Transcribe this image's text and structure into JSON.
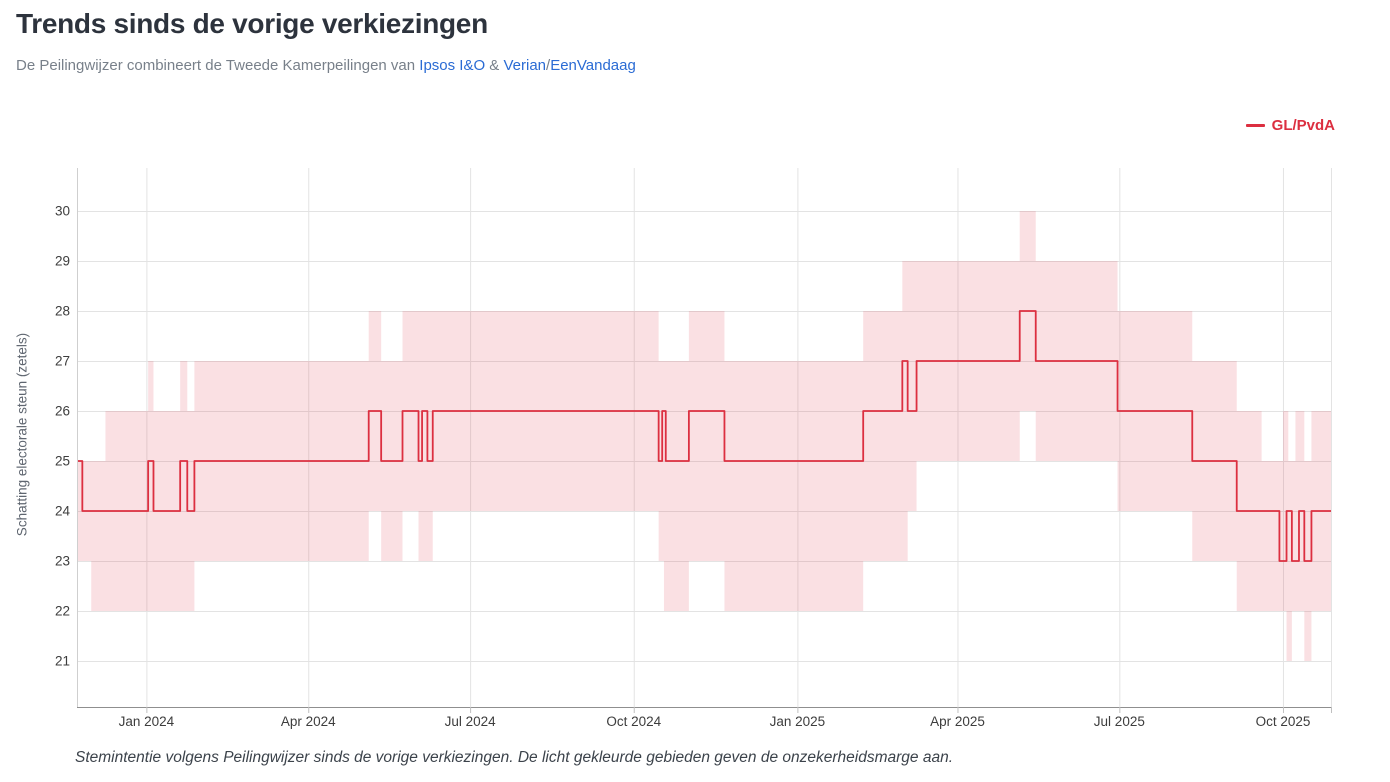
{
  "header": {
    "title": "Trends sinds de vorige verkiezingen",
    "subtitle_prefix": "De Peilingwijzer combineert de Tweede Kamerpeilingen van ",
    "link_ipsos": "Ipsos I&O",
    "sep_amp": " & ",
    "link_verian": "Verian",
    "sep_slash": "/",
    "link_eenvandaag": "EenVandaag"
  },
  "legend": {
    "label": "GL/PvdA"
  },
  "caption": "Stemintentie volgens Peilingwijzer sinds de vorige verkiezingen. De licht gekleurde gebieden geven de onzekerheidsmarge aan.",
  "chart_data": {
    "type": "line",
    "step": true,
    "series_name": "GL/PvdA",
    "ylabel": "Schatting electorale steun (zetels)",
    "x_domain": [
      "2023-11-23",
      "2025-10-28"
    ],
    "ylim": [
      20.1,
      30.9
    ],
    "grid": true,
    "legend_position": "top-right",
    "yticks": [
      21,
      22,
      23,
      24,
      25,
      26,
      27,
      28,
      29,
      30
    ],
    "xticks": [
      {
        "date": "2024-01-01",
        "label": "Jan 2024"
      },
      {
        "date": "2024-04-01",
        "label": "Apr 2024"
      },
      {
        "date": "2024-07-01",
        "label": "Jul 2024"
      },
      {
        "date": "2024-10-01",
        "label": "Oct 2024"
      },
      {
        "date": "2025-01-01",
        "label": "Jan 2025"
      },
      {
        "date": "2025-04-01",
        "label": "Apr 2025"
      },
      {
        "date": "2025-07-01",
        "label": "Jul 2025"
      },
      {
        "date": "2025-10-01",
        "label": "Oct 2025"
      }
    ],
    "colors": {
      "line": "#dc2f40",
      "band": "rgba(220,47,64,0.15)"
    },
    "line": [
      [
        "2023-11-23",
        25
      ],
      [
        "2023-11-26",
        24
      ],
      [
        "2024-01-02",
        25
      ],
      [
        "2024-01-05",
        24
      ],
      [
        "2024-01-20",
        25
      ],
      [
        "2024-01-24",
        24
      ],
      [
        "2024-01-28",
        25
      ],
      [
        "2024-05-05",
        26
      ],
      [
        "2024-05-12",
        25
      ],
      [
        "2024-05-24",
        26
      ],
      [
        "2024-06-02",
        25
      ],
      [
        "2024-06-04",
        26
      ],
      [
        "2024-06-07",
        25
      ],
      [
        "2024-06-10",
        26
      ],
      [
        "2024-10-15",
        25
      ],
      [
        "2024-10-17",
        26
      ],
      [
        "2024-10-19",
        25
      ],
      [
        "2024-11-01",
        26
      ],
      [
        "2024-11-21",
        25
      ],
      [
        "2025-02-07",
        26
      ],
      [
        "2025-03-01",
        27
      ],
      [
        "2025-03-04",
        26
      ],
      [
        "2025-03-09",
        27
      ],
      [
        "2025-05-06",
        28
      ],
      [
        "2025-05-15",
        27
      ],
      [
        "2025-06-30",
        26
      ],
      [
        "2025-08-11",
        25
      ],
      [
        "2025-09-05",
        24
      ],
      [
        "2025-09-29",
        23
      ],
      [
        "2025-10-03",
        24
      ],
      [
        "2025-10-06",
        23
      ],
      [
        "2025-10-10",
        24
      ],
      [
        "2025-10-13",
        23
      ],
      [
        "2025-10-17",
        24
      ]
    ],
    "band_high": [
      [
        "2023-11-23",
        25
      ],
      [
        "2023-12-09",
        26
      ],
      [
        "2024-01-02",
        27
      ],
      [
        "2024-01-05",
        26
      ],
      [
        "2024-01-20",
        27
      ],
      [
        "2024-01-24",
        26
      ],
      [
        "2024-01-28",
        27
      ],
      [
        "2024-05-05",
        28
      ],
      [
        "2024-05-12",
        27
      ],
      [
        "2024-05-24",
        28
      ],
      [
        "2024-10-15",
        27
      ],
      [
        "2024-11-01",
        28
      ],
      [
        "2024-11-21",
        27
      ],
      [
        "2025-02-07",
        28
      ],
      [
        "2025-03-01",
        29
      ],
      [
        "2025-05-06",
        30
      ],
      [
        "2025-05-15",
        29
      ],
      [
        "2025-06-30",
        28
      ],
      [
        "2025-08-11",
        27
      ],
      [
        "2025-09-05",
        26
      ],
      [
        "2025-09-19",
        25
      ],
      [
        "2025-10-01",
        26
      ],
      [
        "2025-10-04",
        25
      ],
      [
        "2025-10-08",
        26
      ],
      [
        "2025-10-13",
        25
      ],
      [
        "2025-10-17",
        26
      ]
    ],
    "band_low": [
      [
        "2023-11-23",
        23
      ],
      [
        "2023-12-01",
        22
      ],
      [
        "2024-01-28",
        23
      ],
      [
        "2024-05-05",
        24
      ],
      [
        "2024-05-12",
        23
      ],
      [
        "2024-05-24",
        24
      ],
      [
        "2024-06-02",
        23
      ],
      [
        "2024-06-10",
        24
      ],
      [
        "2024-10-15",
        23
      ],
      [
        "2024-10-18",
        22
      ],
      [
        "2024-11-01",
        23
      ],
      [
        "2024-11-21",
        22
      ],
      [
        "2025-02-07",
        23
      ],
      [
        "2025-03-04",
        24
      ],
      [
        "2025-03-09",
        25
      ],
      [
        "2025-05-06",
        26
      ],
      [
        "2025-05-15",
        25
      ],
      [
        "2025-06-30",
        24
      ],
      [
        "2025-08-11",
        23
      ],
      [
        "2025-09-05",
        22
      ],
      [
        "2025-10-03",
        21
      ],
      [
        "2025-10-06",
        22
      ],
      [
        "2025-10-13",
        21
      ],
      [
        "2025-10-17",
        22
      ]
    ]
  }
}
